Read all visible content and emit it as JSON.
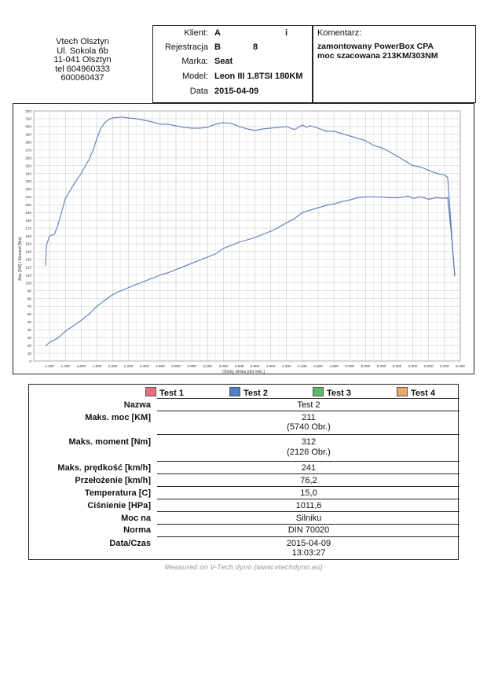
{
  "shop": {
    "name": "Vtech Olsztyn",
    "street": "Ul. Sokola 6b",
    "city": "11-041 Olsztyn",
    "phone": "tel 604960333",
    "phone2": "600060437"
  },
  "vehicle": {
    "client_label": "Klient:",
    "client_value": "A",
    "client_extra": "i",
    "reg_label": "Rejestracja",
    "reg_value": "B",
    "reg_extra": "8",
    "make_label": "Marka:",
    "make_value": "Seat",
    "model_label": "Model:",
    "model_value": "Leon III 1.8TSI 180KM",
    "date_label": "Data",
    "date_value": "2015-04-09"
  },
  "comment": {
    "label": "Komentarz:",
    "line1": "zamontowany PowerBox CPA",
    "line2": "moc szacowana 213KM/303NM"
  },
  "chart_data": {
    "type": "line",
    "xlabel": "Obroty silnika [obr./min.]",
    "ylabel": "Moc [KM] / Moment [Nm]",
    "xlim": [
      1000,
      6400
    ],
    "ylim": [
      0,
      320
    ],
    "x_ticks": [
      1200,
      1400,
      1600,
      1800,
      2000,
      2200,
      2400,
      2600,
      2800,
      3000,
      3200,
      3400,
      3600,
      3800,
      4000,
      4200,
      4400,
      4600,
      4800,
      5000,
      5200,
      5400,
      5600,
      5800,
      6000,
      6200,
      6400
    ],
    "y_ticks": [
      0,
      10,
      20,
      30,
      40,
      50,
      60,
      70,
      80,
      90,
      100,
      110,
      120,
      130,
      140,
      150,
      160,
      170,
      180,
      190,
      200,
      210,
      220,
      230,
      240,
      250,
      260,
      270,
      280,
      290,
      300,
      310,
      320
    ],
    "grid": true,
    "series": [
      {
        "x": [
          1150,
          1160,
          1200,
          1260,
          1300,
          1400,
          1500,
          1600,
          1700,
          1760,
          1800,
          1850,
          1900,
          1950,
          2000,
          2050,
          2100,
          2126,
          2200,
          2300,
          2400,
          2500,
          2600,
          2700,
          2800,
          2900,
          3000,
          3100,
          3200,
          3300,
          3400,
          3500,
          3600,
          3700,
          3800,
          3900,
          4000,
          4100,
          4200,
          4300,
          4400,
          4450,
          4500,
          4600,
          4700,
          4800,
          4900,
          5000,
          5100,
          5200,
          5300,
          5400,
          5500,
          5600,
          5700,
          5800,
          5900,
          6000,
          6100,
          6200,
          6240,
          6300,
          6330
        ],
        "values": [
          122,
          148,
          160,
          162,
          172,
          208,
          225,
          240,
          258,
          272,
          285,
          298,
          305,
          309,
          311,
          311.5,
          312,
          312,
          311,
          310,
          308,
          306,
          303,
          303,
          301,
          299,
          298,
          298,
          299,
          303,
          305,
          304,
          300,
          297,
          295,
          297,
          298,
          299,
          300,
          296,
          302,
          299,
          301,
          298,
          294,
          294,
          291,
          288,
          285,
          282,
          276,
          273,
          268,
          262,
          256,
          250,
          248,
          244,
          240,
          238,
          235,
          150,
          108
        ]
      },
      {
        "x": [
          1150,
          1200,
          1300,
          1400,
          1500,
          1600,
          1700,
          1800,
          1900,
          2000,
          2100,
          2200,
          2300,
          2400,
          2500,
          2600,
          2700,
          2800,
          2900,
          3000,
          3100,
          3200,
          3300,
          3400,
          3500,
          3600,
          3700,
          3800,
          3900,
          4000,
          4100,
          4200,
          4300,
          4400,
          4500,
          4600,
          4700,
          4800,
          4900,
          5000,
          5100,
          5200,
          5300,
          5400,
          5500,
          5600,
          5700,
          5740,
          5800,
          5900,
          6000,
          6100,
          6200,
          6240,
          6280,
          6330
        ],
        "values": [
          19,
          24,
          29,
          38,
          45,
          52,
          60,
          70,
          78,
          85,
          90,
          94,
          98,
          102,
          106,
          110,
          113,
          117,
          121,
          125,
          129,
          133,
          137,
          144,
          148,
          152,
          155,
          158,
          162,
          166,
          171,
          177,
          182,
          190,
          193,
          196,
          199,
          201,
          204,
          206,
          209,
          210,
          210,
          210,
          209,
          209,
          210,
          211,
          208,
          210,
          207,
          209,
          208,
          209,
          170,
          110
        ]
      }
    ]
  },
  "results": {
    "legend": [
      {
        "label": "Test 1",
        "color": "#e8707a"
      },
      {
        "label": "Test 2",
        "color": "#4f7fc9"
      },
      {
        "label": "Test 3",
        "color": "#5cb86a"
      },
      {
        "label": "Test 4",
        "color": "#f0a868"
      }
    ],
    "rows": [
      {
        "label": "Nazwa",
        "value": "Test 2",
        "value2": ""
      },
      {
        "label": "Maks. moc [KM]",
        "value": "211",
        "value2": "(5740 Obr.)"
      },
      {
        "label": "Maks. moment [Nm]",
        "value": "312",
        "value2": "(2126 Obr.)"
      },
      {
        "label": "Maks. prędkość [km/h]",
        "value": "241",
        "value2": ""
      },
      {
        "label": "Przełożenie [km/h]",
        "value": "76,2",
        "value2": ""
      },
      {
        "label": "Temperatura [C]",
        "value": "15,0",
        "value2": ""
      },
      {
        "label": "Ciśnienie [HPa]",
        "value": "1011,6",
        "value2": ""
      },
      {
        "label": "Moc na",
        "value": "Silniku",
        "value2": ""
      },
      {
        "label": "Norma",
        "value": "DIN 70020",
        "value2": ""
      },
      {
        "label": "Data/Czas",
        "value": "2015-04-09",
        "value2": "13:03:27"
      }
    ]
  },
  "footer": "Measured on V-Tech dyno (www.vtechdyno.eu)"
}
